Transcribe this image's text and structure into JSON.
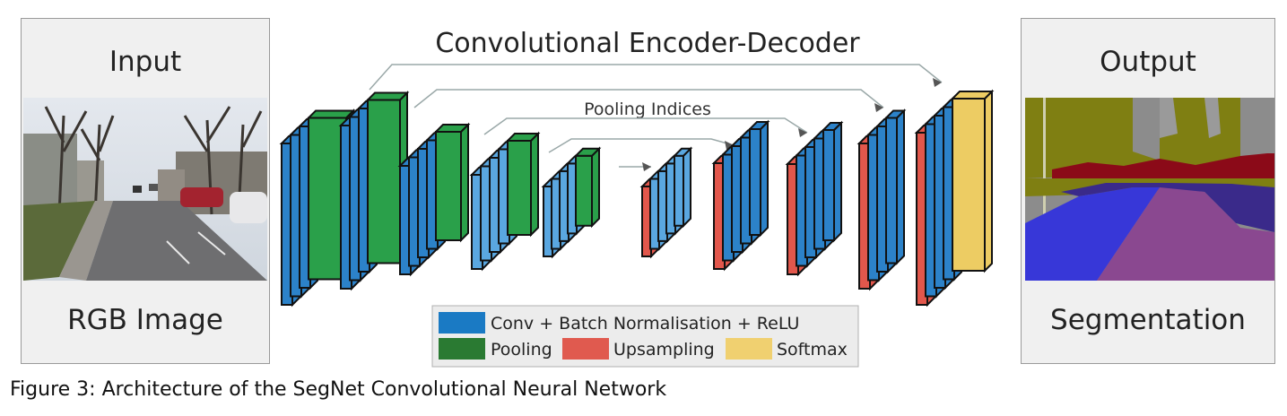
{
  "input_panel": {
    "title": "Input",
    "subtitle": "RGB Image"
  },
  "output_panel": {
    "title": "Output",
    "subtitle": "Segmentation"
  },
  "diagram": {
    "title": "Convolutional Encoder-Decoder",
    "skip_label": "Pooling Indices"
  },
  "legend": {
    "items": [
      {
        "label": "Conv + Batch Normalisation + ReLU",
        "color": "#1a7ac4"
      },
      {
        "label": "Pooling",
        "color": "#2a7a32"
      },
      {
        "label": "Upsampling",
        "color": "#e05a4f"
      },
      {
        "label": "Softmax",
        "color": "#f0d070"
      }
    ]
  },
  "caption": "Figure 3: Architecture of the SegNet Convolutional Neural Network",
  "colors": {
    "conv": "#2c82c9",
    "pool": "#2aa04a",
    "upsample": "#e2574c",
    "softmax": "#edcc63",
    "lightconv": "#5aa7e0"
  }
}
